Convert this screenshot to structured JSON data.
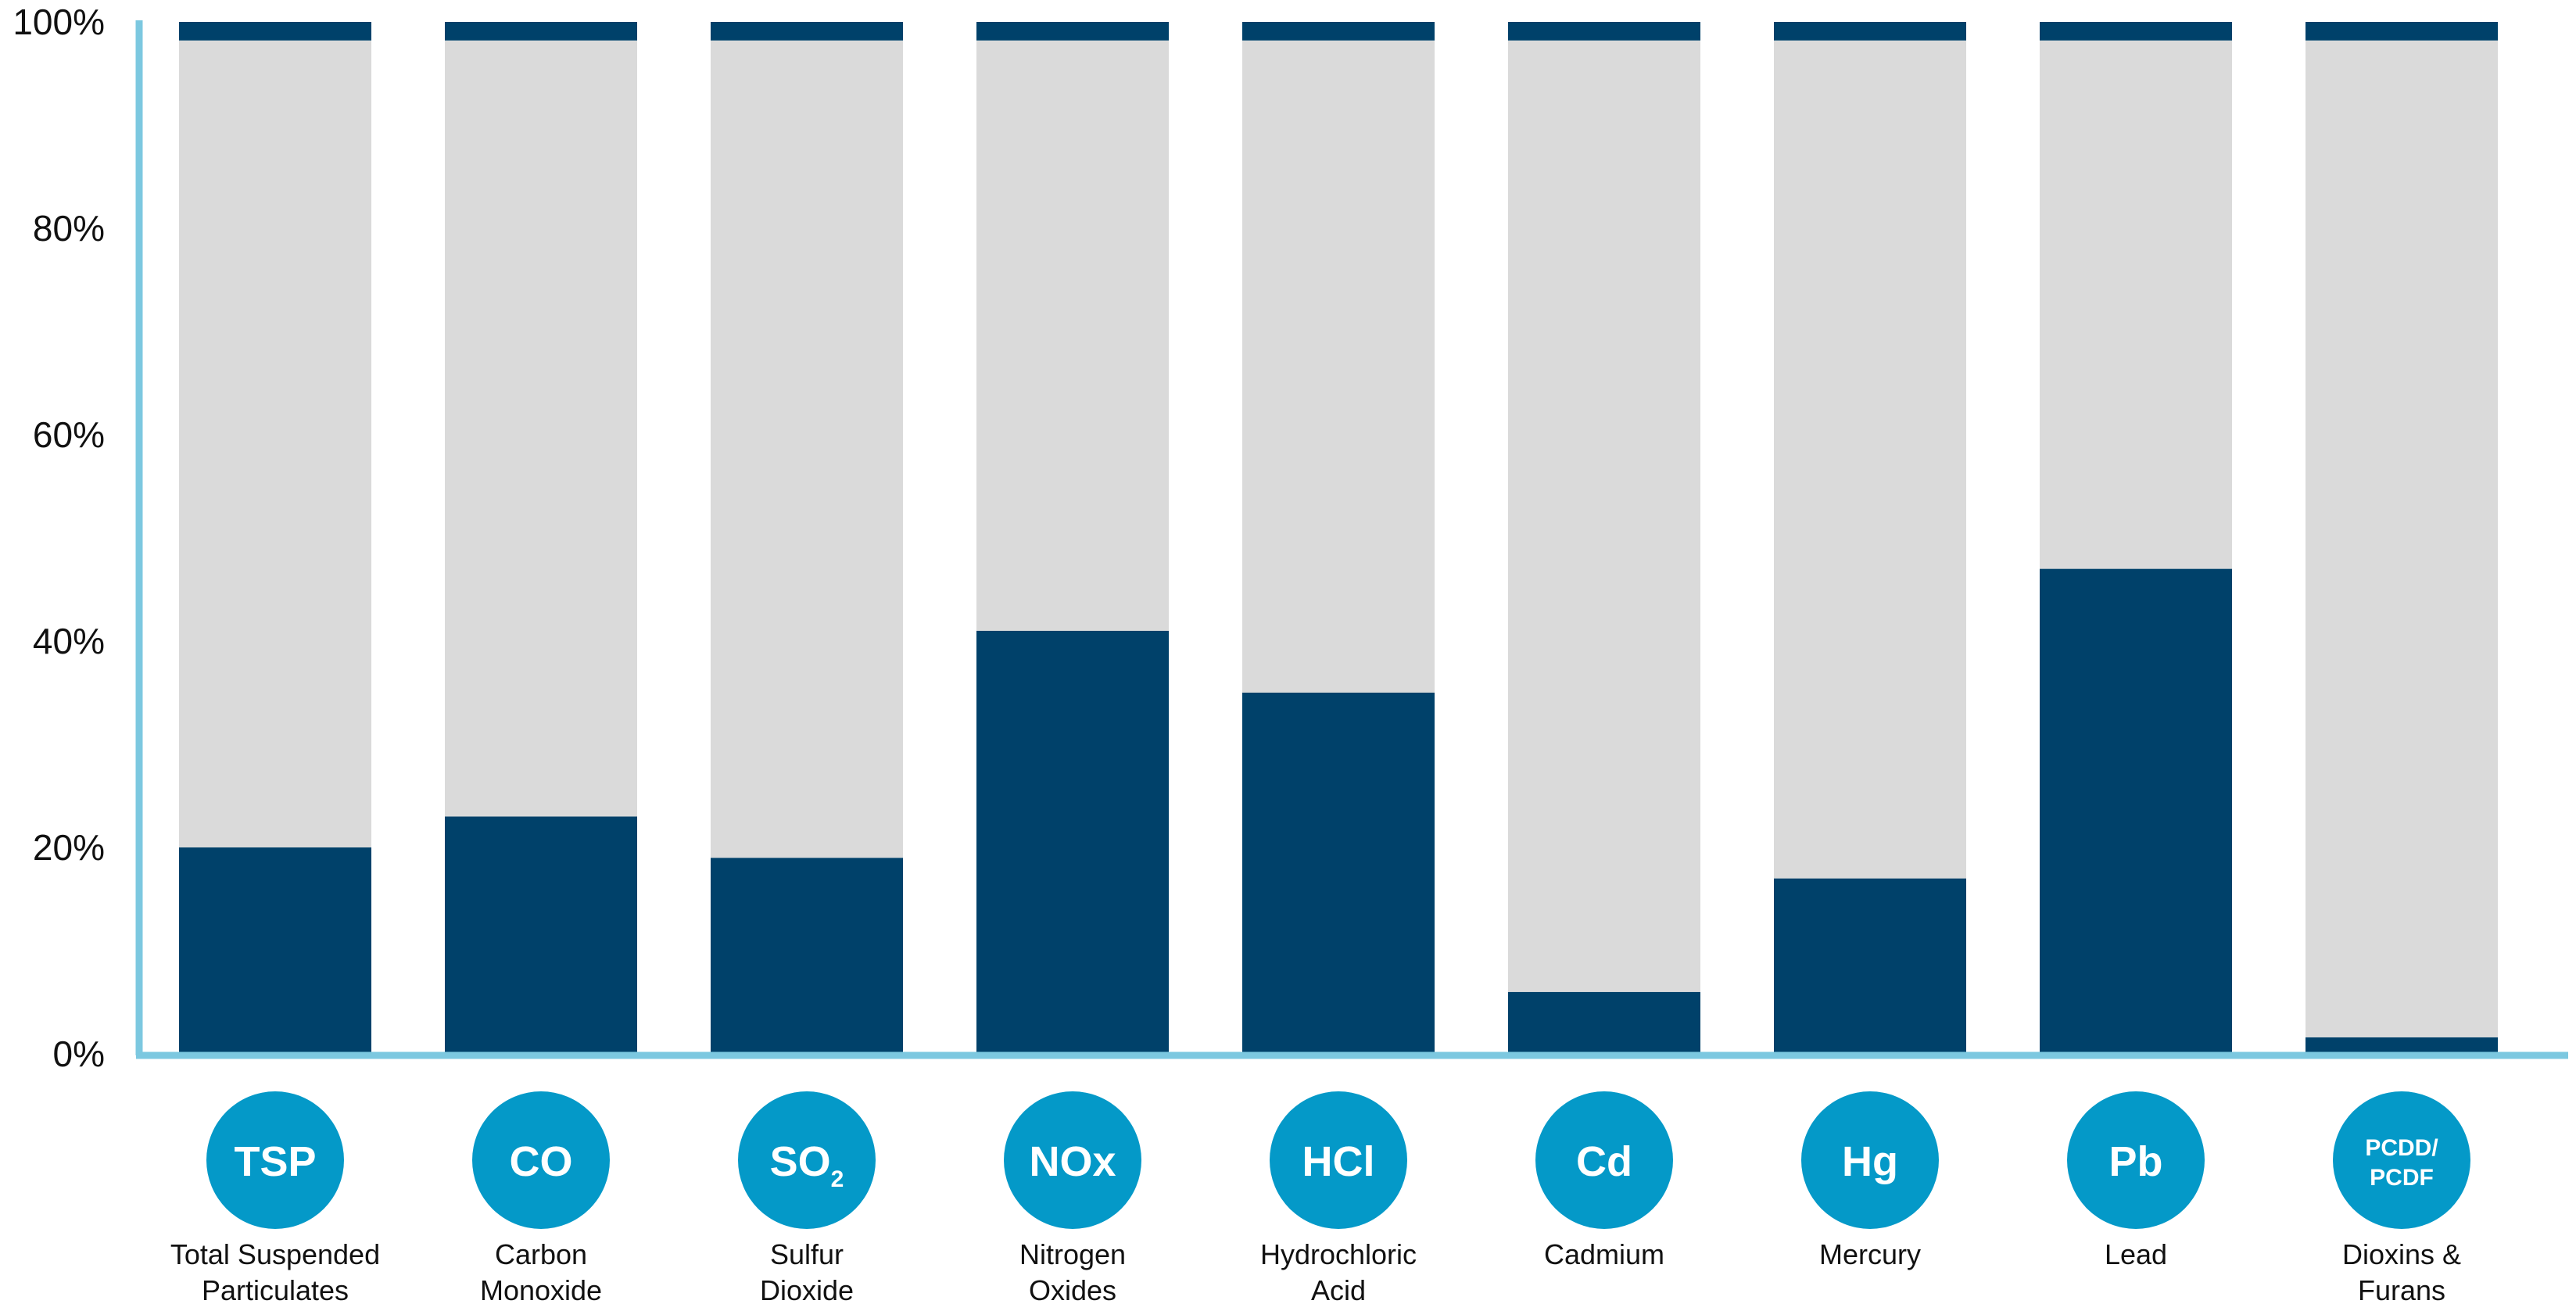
{
  "chart_data": {
    "type": "bar",
    "stacked": true,
    "ylim": [
      0,
      100
    ],
    "yticks": [
      "0%",
      "20%",
      "40%",
      "60%",
      "80%",
      "100%"
    ],
    "ytick_values": [
      0,
      20,
      40,
      60,
      80,
      100
    ],
    "grid": false,
    "legend": "none",
    "categories": [
      {
        "badge": "TSP",
        "badge_sub": "",
        "label_lines": [
          "Total Suspended",
          "Particulates"
        ]
      },
      {
        "badge": "CO",
        "badge_sub": "",
        "label_lines": [
          "Carbon",
          "Monoxide"
        ]
      },
      {
        "badge": "SO",
        "badge_sub": "2",
        "label_lines": [
          "Sulfur",
          "Dioxide"
        ]
      },
      {
        "badge": "NOx",
        "badge_sub": "",
        "label_lines": [
          "Nitrogen",
          "Oxides"
        ]
      },
      {
        "badge": "HCl",
        "badge_sub": "",
        "label_lines": [
          "Hydrochloric",
          "Acid"
        ]
      },
      {
        "badge": "Cd",
        "badge_sub": "",
        "label_lines": [
          "Cadmium"
        ]
      },
      {
        "badge": "Hg",
        "badge_sub": "",
        "label_lines": [
          "Mercury"
        ]
      },
      {
        "badge": "Pb",
        "badge_sub": "",
        "label_lines": [
          "Lead"
        ]
      },
      {
        "badge": "PCDD/\nPCDF",
        "badge_sub": "",
        "label_lines": [
          "Dioxins &",
          "Furans"
        ]
      }
    ],
    "series": [
      {
        "values": [
          20,
          23,
          19,
          41,
          35,
          6,
          17,
          47,
          1.6
        ],
        "color": "#00416a"
      },
      {
        "values": [
          78.2,
          75.2,
          79.2,
          57.2,
          63.2,
          92.2,
          81.2,
          51.2,
          96.6
        ],
        "color": "#dadada"
      },
      {
        "values": [
          1.8,
          1.8,
          1.8,
          1.8,
          1.8,
          1.8,
          1.8,
          1.8,
          1.8
        ],
        "color": "#00416a"
      }
    ]
  },
  "colors": {
    "axis": "#7cc8e0",
    "badge": "#0499c8"
  }
}
